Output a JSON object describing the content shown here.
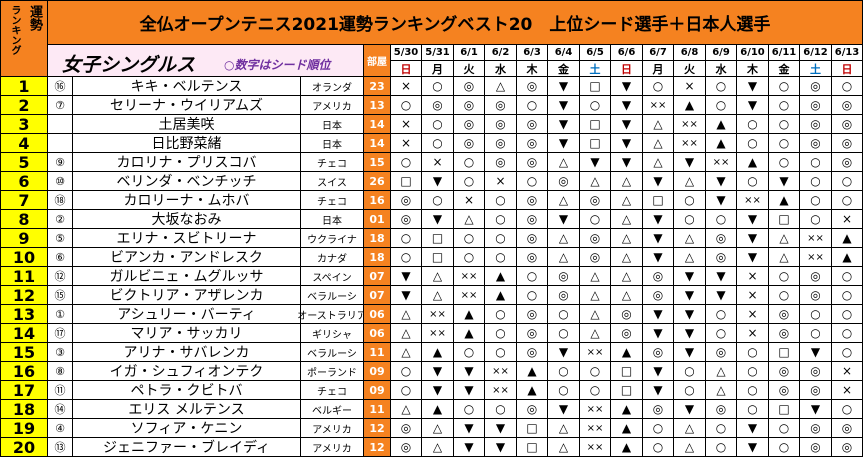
{
  "header": {
    "rank_label": "ランキング",
    "fortune_label": "運勢",
    "title": "全仏オープンテニス2021運勢ランキングベスト20　上位シード選手＋日本人選手",
    "section_title": "女子シングルス",
    "seed_note": "○数字はシード順位",
    "room_label": "部屋"
  },
  "dates": [
    "5/30",
    "5/31",
    "6/1",
    "6/2",
    "6/3",
    "6/4",
    "6/5",
    "6/6",
    "6/7",
    "6/8",
    "6/9",
    "6/10",
    "6/11",
    "6/12",
    "6/13"
  ],
  "weekdays": [
    "日",
    "月",
    "火",
    "水",
    "木",
    "金",
    "土",
    "日",
    "月",
    "火",
    "水",
    "木",
    "金",
    "土",
    "日"
  ],
  "players": [
    {
      "rank": "1",
      "seed": "⑯",
      "name": "キキ・ベルテンス",
      "country": "オランダ",
      "room": "23",
      "marks": [
        "×",
        "○",
        "◎",
        "△",
        "◎",
        "▼",
        "□",
        "▼",
        "○",
        "×",
        "○",
        "▼",
        "○",
        "◎",
        "○"
      ]
    },
    {
      "rank": "2",
      "seed": "⑦",
      "name": "セリーナ・ウイリアムズ",
      "country": "アメリカ",
      "room": "13",
      "marks": [
        "○",
        "◎",
        "◎",
        "◎",
        "○",
        "▼",
        "○",
        "▼",
        "××",
        "▲",
        "○",
        "▼",
        "○",
        "◎",
        "◎"
      ]
    },
    {
      "rank": "3",
      "seed": "",
      "name": "土居美咲",
      "country": "日本",
      "room": "14",
      "marks": [
        "×",
        "○",
        "◎",
        "◎",
        "◎",
        "▼",
        "□",
        "▼",
        "△",
        "××",
        "▲",
        "○",
        "○",
        "◎",
        "◎"
      ]
    },
    {
      "rank": "4",
      "seed": "",
      "name": "日比野菜緒",
      "country": "日本",
      "room": "14",
      "marks": [
        "×",
        "○",
        "◎",
        "◎",
        "◎",
        "▼",
        "□",
        "▼",
        "△",
        "××",
        "▲",
        "○",
        "○",
        "◎",
        "◎"
      ]
    },
    {
      "rank": "5",
      "seed": "⑨",
      "name": "カロリナ・プリスコバ",
      "country": "チェコ",
      "room": "15",
      "marks": [
        "○",
        "×",
        "○",
        "◎",
        "◎",
        "△",
        "▼",
        "▼",
        "△",
        "▼",
        "××",
        "▲",
        "○",
        "○",
        "◎"
      ]
    },
    {
      "rank": "6",
      "seed": "⑩",
      "name": "ベリンダ・ベンチッチ",
      "country": "スイス",
      "room": "26",
      "marks": [
        "□",
        "▼",
        "○",
        "×",
        "○",
        "◎",
        "△",
        "△",
        "▼",
        "△",
        "▼",
        "○",
        "▼",
        "○",
        "○"
      ]
    },
    {
      "rank": "7",
      "seed": "⑱",
      "name": "カロリーナ・ムホバ",
      "country": "チェコ",
      "room": "16",
      "marks": [
        "◎",
        "○",
        "×",
        "○",
        "◎",
        "△",
        "◎",
        "△",
        "□",
        "○",
        "▼",
        "××",
        "▲",
        "○",
        "○"
      ]
    },
    {
      "rank": "8",
      "seed": "②",
      "name": "大坂なおみ",
      "country": "日本",
      "room": "01",
      "marks": [
        "◎",
        "▼",
        "△",
        "○",
        "◎",
        "▼",
        "○",
        "△",
        "▼",
        "○",
        "○",
        "▼",
        "□",
        "○",
        "×"
      ]
    },
    {
      "rank": "9",
      "seed": "⑤",
      "name": "エリナ・スビトリーナ",
      "country": "ウクライナ",
      "room": "18",
      "marks": [
        "○",
        "□",
        "○",
        "○",
        "◎",
        "△",
        "◎",
        "△",
        "▼",
        "△",
        "◎",
        "▼",
        "△",
        "××",
        "▲"
      ]
    },
    {
      "rank": "10",
      "seed": "⑥",
      "name": "ビアンカ・アンドレスク",
      "country": "カナダ",
      "room": "18",
      "marks": [
        "○",
        "□",
        "○",
        "○",
        "◎",
        "△",
        "◎",
        "△",
        "▼",
        "△",
        "◎",
        "▼",
        "△",
        "××",
        "▲"
      ]
    },
    {
      "rank": "11",
      "seed": "⑫",
      "name": "ガルビニェ・ムグルッサ",
      "country": "スペイン",
      "room": "07",
      "marks": [
        "▼",
        "△",
        "××",
        "▲",
        "○",
        "◎",
        "△",
        "△",
        "◎",
        "▼",
        "▼",
        "×",
        "○",
        "◎",
        "○"
      ]
    },
    {
      "rank": "12",
      "seed": "⑮",
      "name": "ビクトリア・アザレンカ",
      "country": "ベラルーシ",
      "room": "07",
      "marks": [
        "▼",
        "△",
        "××",
        "▲",
        "○",
        "◎",
        "△",
        "△",
        "◎",
        "▼",
        "▼",
        "×",
        "○",
        "◎",
        "○"
      ]
    },
    {
      "rank": "13",
      "seed": "①",
      "name": "アシュリー・バーティ",
      "country": "オーストラリア",
      "room": "06",
      "marks": [
        "△",
        "××",
        "▲",
        "○",
        "◎",
        "○",
        "△",
        "◎",
        "▼",
        "▼",
        "○",
        "×",
        "◎",
        "○",
        "○"
      ]
    },
    {
      "rank": "14",
      "seed": "⑰",
      "name": "マリア・サッカリ",
      "country": "ギリシャ",
      "room": "06",
      "marks": [
        "△",
        "××",
        "▲",
        "○",
        "◎",
        "○",
        "△",
        "◎",
        "▼",
        "▼",
        "○",
        "×",
        "◎",
        "○",
        "○"
      ]
    },
    {
      "rank": "15",
      "seed": "③",
      "name": "アリナ・サバレンカ",
      "country": "ベラルーシ",
      "room": "11",
      "marks": [
        "△",
        "▲",
        "○",
        "○",
        "◎",
        "▼",
        "××",
        "▲",
        "◎",
        "▼",
        "◎",
        "○",
        "□",
        "▼",
        "○"
      ]
    },
    {
      "rank": "16",
      "seed": "⑧",
      "name": "イガ・シュフィオンテク",
      "country": "ポーランド",
      "room": "09",
      "marks": [
        "○",
        "▼",
        "▼",
        "××",
        "▲",
        "○",
        "○",
        "□",
        "▼",
        "○",
        "△",
        "○",
        "◎",
        "◎",
        "×"
      ]
    },
    {
      "rank": "17",
      "seed": "⑪",
      "name": "ペトラ・クビトバ",
      "country": "チェコ",
      "room": "09",
      "marks": [
        "○",
        "▼",
        "▼",
        "××",
        "▲",
        "○",
        "○",
        "□",
        "▼",
        "○",
        "△",
        "○",
        "◎",
        "◎",
        "×"
      ]
    },
    {
      "rank": "18",
      "seed": "⑭",
      "name": "エリス メルテンス",
      "country": "ベルギー",
      "room": "11",
      "marks": [
        "△",
        "▲",
        "○",
        "○",
        "◎",
        "▼",
        "××",
        "▲",
        "◎",
        "▼",
        "◎",
        "○",
        "□",
        "▼",
        "○"
      ]
    },
    {
      "rank": "19",
      "seed": "④",
      "name": "ソフィア・ケニン",
      "country": "アメリカ",
      "room": "12",
      "marks": [
        "◎",
        "△",
        "▼",
        "▼",
        "□",
        "△",
        "××",
        "▲",
        "○",
        "△",
        "○",
        "▼",
        "○",
        "◎",
        "◎"
      ]
    },
    {
      "rank": "20",
      "seed": "⑬",
      "name": "ジェニファー・ブレイディ",
      "country": "アメリカ",
      "room": "12",
      "marks": [
        "◎",
        "△",
        "▼",
        "▼",
        "□",
        "△",
        "××",
        "▲",
        "○",
        "△",
        "○",
        "▼",
        "○",
        "◎",
        "◎"
      ]
    }
  ],
  "colors": {
    "title_bg": "#f58220",
    "rank_bg": "#ffff00",
    "section_bg": "#fde9f5",
    "section_text": "#000000",
    "seed_note_text": "#7030a0",
    "room_bg": "#f58220",
    "room_text": "#ffffff"
  }
}
